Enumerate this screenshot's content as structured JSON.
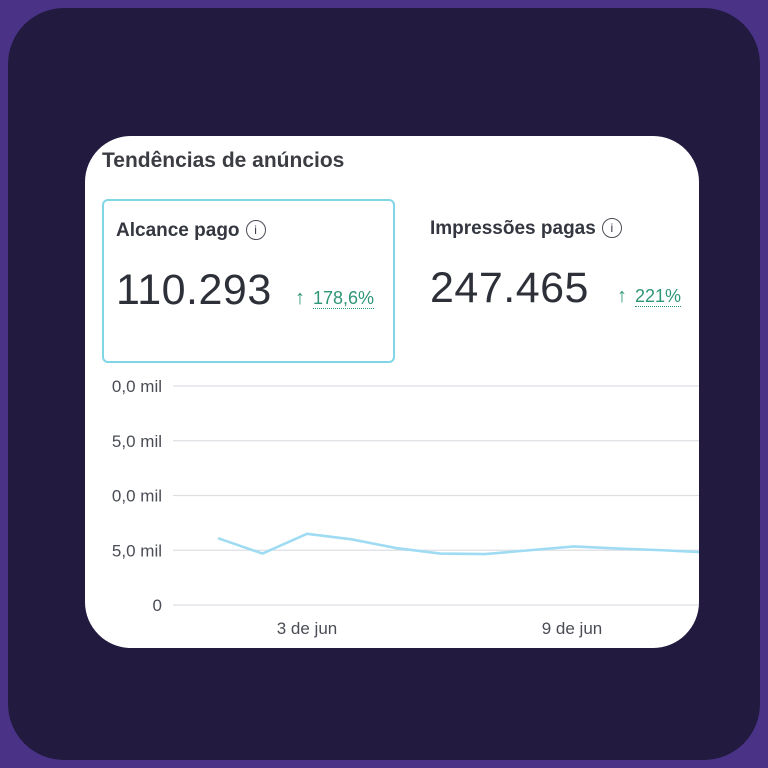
{
  "title": "Tendências de anúncios",
  "metrics": [
    {
      "label": "Alcance pago",
      "value": "110.293",
      "change": "178,6%"
    },
    {
      "label": "Impressões pagas",
      "value": "247.465",
      "change": "221%"
    }
  ],
  "icons": {
    "info": "info-icon",
    "change_arrow": "arrow-up-icon",
    "change_arrow_glyph": "↑"
  },
  "colors": {
    "frame_background": "#231a3f",
    "outer_background": "#4a3386",
    "selected_border": "#80d6e5",
    "positive_change": "#2e9677",
    "line": "#9fdcf3",
    "grid": "#dedfe3"
  },
  "chart_data": {
    "type": "line",
    "ytick_labels": [
      "0,0 mil",
      "5,0 mil",
      "0,0 mil",
      "5,0 mil",
      "0"
    ],
    "xtick_labels": [
      "3 de jun",
      "9 de jun"
    ],
    "ylim": [
      0,
      20000
    ],
    "grid": true,
    "series": [
      {
        "values": [
          6100,
          4700,
          6500,
          6000,
          5200,
          4700,
          4650,
          5000,
          5350,
          5150,
          5000,
          4800
        ]
      }
    ]
  }
}
